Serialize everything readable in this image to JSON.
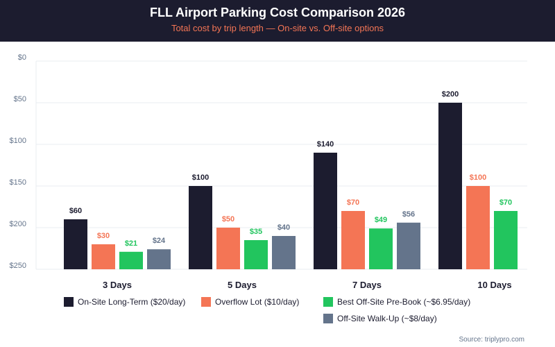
{
  "header": {
    "title": "FLL Airport Parking Cost Comparison 2026",
    "subtitle": "Total cost by trip length — On-site vs. Off-site options"
  },
  "source": "Source: triplypro.com",
  "chart_data": {
    "type": "bar",
    "title": "FLL Airport Parking Cost Comparison 2026",
    "subtitle": "Total cost by trip length — On-site vs. Off-site options",
    "categories": [
      "3 Days",
      "5 Days",
      "7 Days",
      "10 Days"
    ],
    "y_ticks": [
      "$0",
      "$50",
      "$100",
      "$150",
      "$200",
      "$250"
    ],
    "ylim": [
      0,
      250
    ],
    "grid": true,
    "legend_position": "bottom",
    "series": [
      {
        "name": "On-Site Long-Term ($20/day)",
        "color": "#1c1c2f",
        "label_color": "#1c1c2f",
        "values": [
          60,
          100,
          140,
          200
        ],
        "labels": [
          "$60",
          "$100",
          "$140",
          "$200"
        ]
      },
      {
        "name": "Overflow Lot ($10/day)",
        "color": "#f47555",
        "label_color": "#f47555",
        "values": [
          30,
          50,
          70,
          100
        ],
        "labels": [
          "$30",
          "$50",
          "$70",
          "$100"
        ]
      },
      {
        "name": "Best Off-Site Pre-Book (~$6.95/day)",
        "color": "#22c55e",
        "label_color": "#22c55e",
        "values": [
          21,
          35,
          49,
          70
        ],
        "labels": [
          "$21",
          "$35",
          "$49",
          "$70"
        ]
      },
      {
        "name": "Off-Site Walk-Up (~$8/day)",
        "color": "#64748b",
        "label_color": "#64748b",
        "values": [
          24,
          40,
          56,
          null
        ],
        "labels": [
          "$24",
          "$40",
          "$56",
          null
        ]
      }
    ]
  }
}
